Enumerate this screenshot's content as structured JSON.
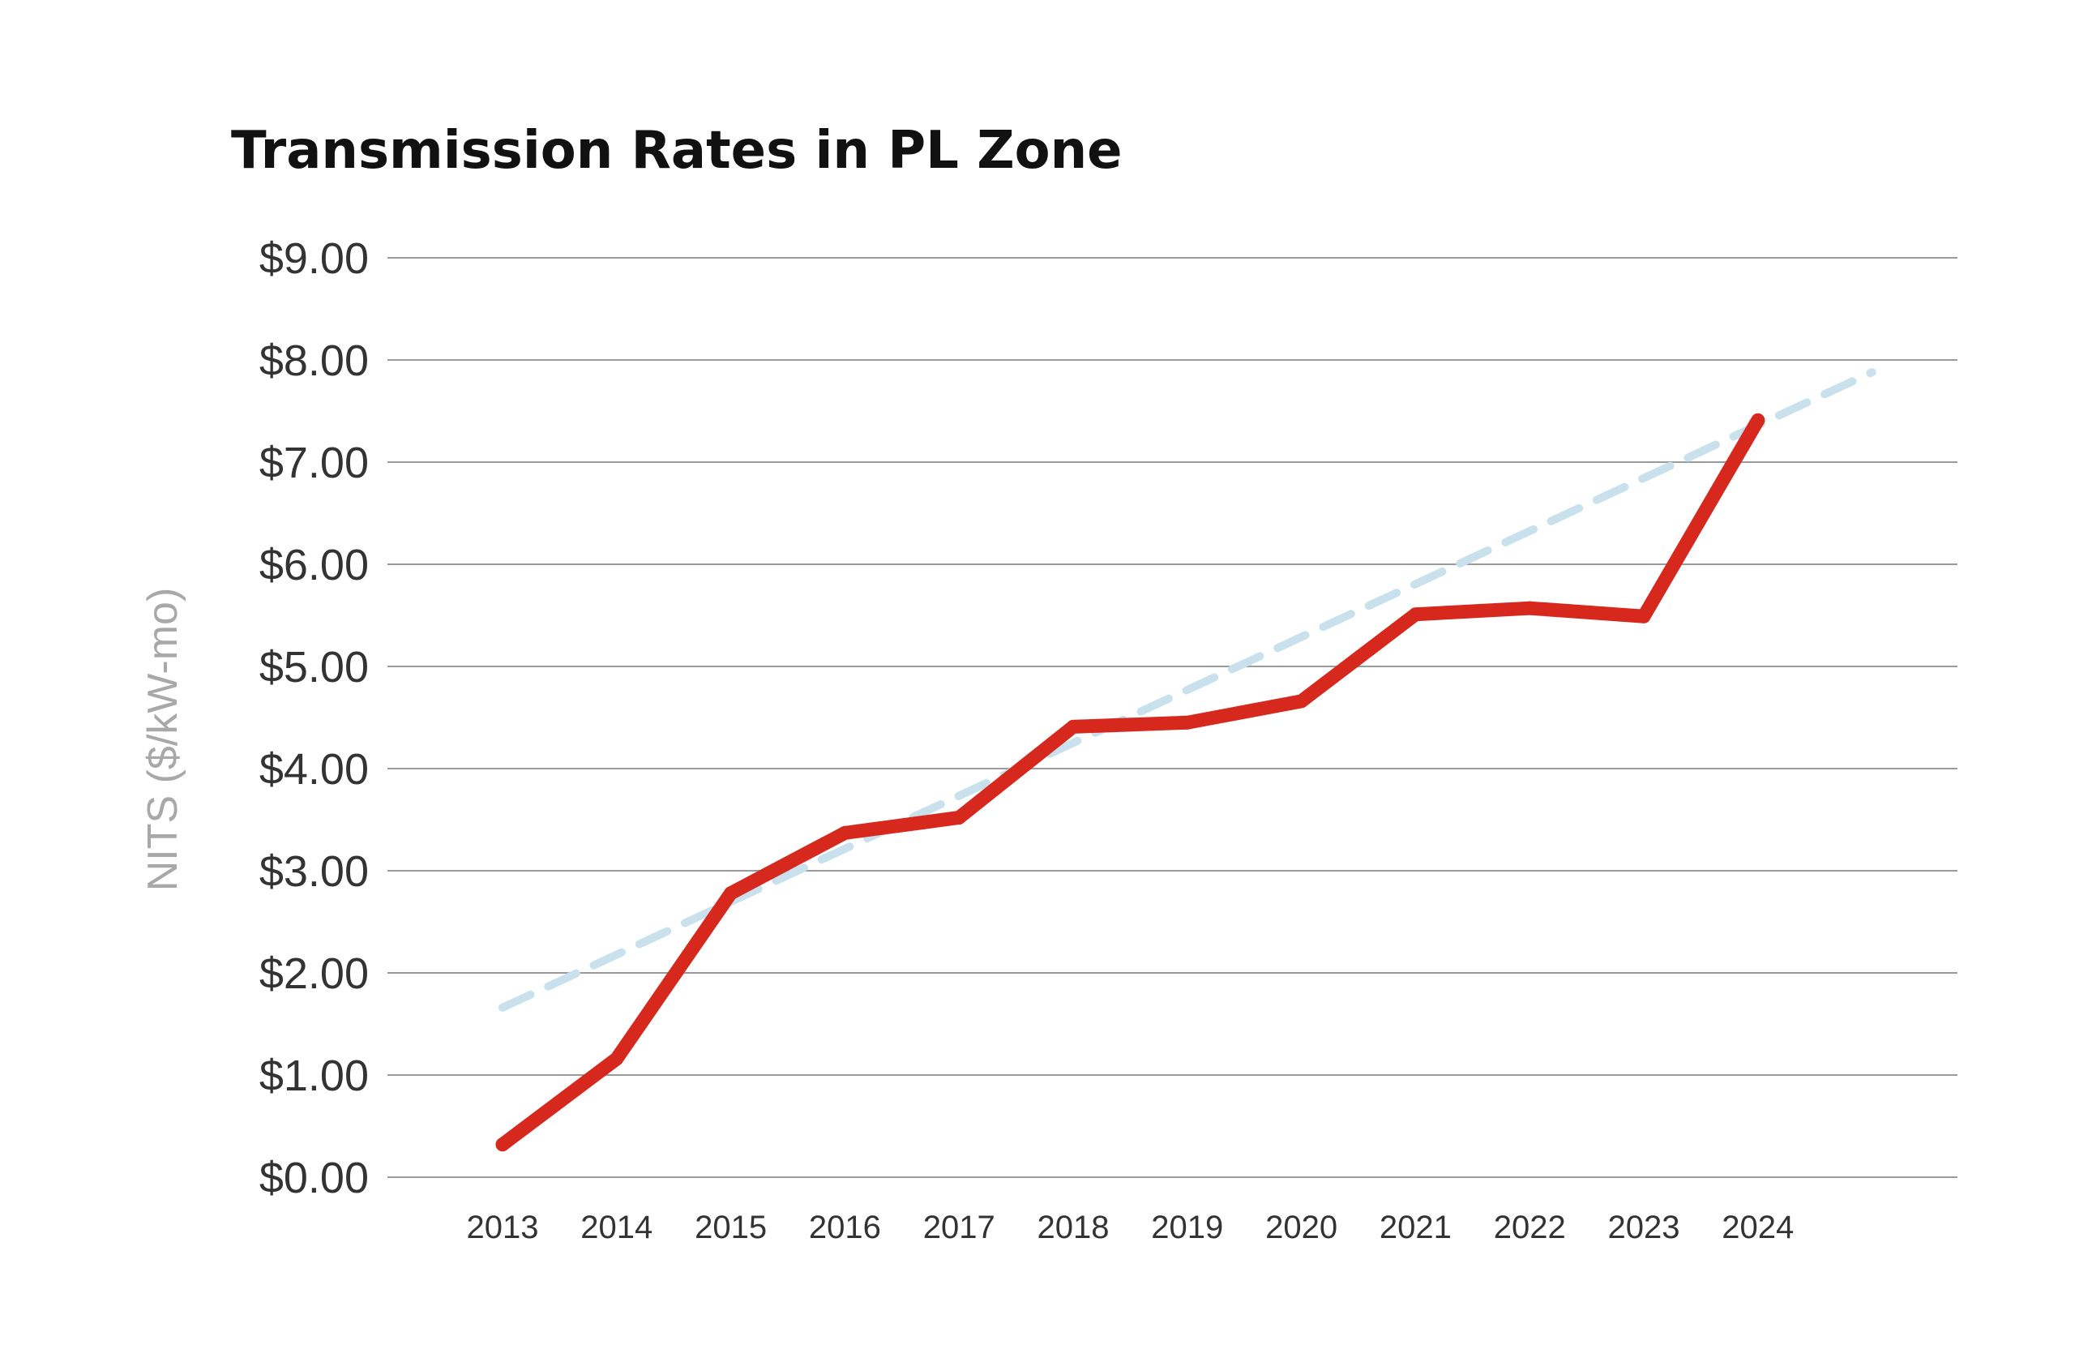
{
  "chart_data": {
    "type": "line",
    "title": "Transmission Rates in PL Zone",
    "xlabel": "",
    "ylabel": "NITS ($/kW-mo)",
    "categories": [
      "2013",
      "2014",
      "2015",
      "2016",
      "2017",
      "2018",
      "2019",
      "2020",
      "2021",
      "2022",
      "2023",
      "2024"
    ],
    "y_ticks": [
      "$0.00",
      "$1.00",
      "$2.00",
      "$3.00",
      "$4.00",
      "$5.00",
      "$6.00",
      "$7.00",
      "$8.00",
      "$9.00"
    ],
    "ylim": [
      0,
      9
    ],
    "grid": true,
    "legend": "none",
    "series": [
      {
        "values": [
          0.32,
          1.16,
          2.78,
          3.37,
          3.52,
          4.41,
          4.45,
          4.66,
          5.51,
          5.57,
          5.49,
          7.41
        ],
        "color": "#d7281d",
        "style": "solid"
      },
      {
        "trend_start": {
          "x": "2013",
          "y": 1.66
        },
        "trend_end": {
          "x": "2025",
          "y": 7.88
        },
        "color": "#c8e1ec",
        "style": "dashed"
      }
    ]
  }
}
